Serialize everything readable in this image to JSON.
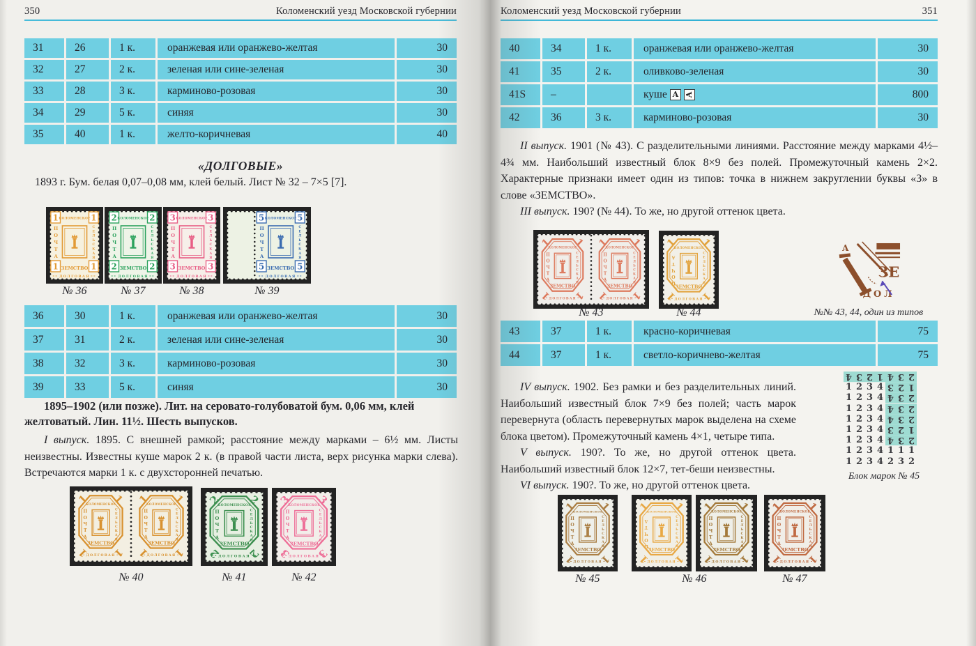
{
  "page_left": {
    "page_number": "350",
    "running_title": "Коломенский уезд Московской губернии",
    "table_top": {
      "rows": [
        [
          "31",
          "26",
          "1 к.",
          "оранжевая или оранжево-желтая",
          "30"
        ],
        [
          "32",
          "27",
          "2 к.",
          "зеленая или сине-зеленая",
          "30"
        ],
        [
          "33",
          "28",
          "3 к.",
          "карминово-розовая",
          "30"
        ],
        [
          "34",
          "29",
          "5 к.",
          "синяя",
          "30"
        ],
        [
          "35",
          "40",
          "1 к.",
          "желто-коричневая",
          "40"
        ]
      ]
    },
    "section_heading": "«ДОЛГОВЫЕ»",
    "para_1893": "1893 г. Бум. белая 0,07–0,08 мм, клей белый. Лист № 32 – 7×5 [7].",
    "stamps_row1": [
      {
        "name": "stamp-36",
        "type": "rect",
        "value": "1",
        "color": "#e29a35",
        "paper": "#f6f1df"
      },
      {
        "name": "stamp-37",
        "type": "rect",
        "value": "2",
        "color": "#2ba25d",
        "paper": "#eef4e8"
      },
      {
        "name": "stamp-38",
        "type": "rect",
        "value": "3",
        "color": "#e85e85",
        "paper": "#f6efe9"
      },
      {
        "name": "stamp-39",
        "type": "rect",
        "value": "5",
        "color": "#3a6cb0",
        "paper": "#edf2e4",
        "selvage": true
      }
    ],
    "captions": {
      "s36": "№ 36",
      "s37": "№ 37",
      "s38": "№ 38",
      "s39": "№ 39",
      "s40": "№ 40",
      "s41": "№ 41",
      "s42": "№ 42"
    },
    "table_mid": {
      "rows": [
        [
          "36",
          "30",
          "1 к.",
          "оранжевая или оранжево-желтая",
          "30"
        ],
        [
          "37",
          "31",
          "2 к.",
          "зеленая или сине-зеленая",
          "30"
        ],
        [
          "38",
          "32",
          "3 к.",
          "карминово-розовая",
          "30"
        ],
        [
          "39",
          "33",
          "5 к.",
          "синяя",
          "30"
        ]
      ]
    },
    "para_bold": "1895–1902 (или позже). Лит. на серовато-голубоватой бум. 0,06 мм, клей желтоватый. Лин. 11½. Шесть выпусков.",
    "para_issue1_lead": "I выпуск.",
    "para_issue1": " 1895. С внешней рамкой; расстояние между марками – 6½ мм. Листы неизвестны. Известны куше марок 2 к. (в правой части листа, верх рисунка марки слева). Встречаются марки 1 к. с двухсторонней печатью.",
    "stamps_row2": [
      {
        "name": "stamp-40",
        "type": "oct",
        "value": "1",
        "color": "#d8912f",
        "paper": "#f3efe2",
        "pair": true
      },
      {
        "name": "stamp-41",
        "type": "oct",
        "value": "2",
        "color": "#3c8f4f",
        "paper": "#e7efe2"
      },
      {
        "name": "stamp-42",
        "type": "oct",
        "value": "3",
        "color": "#ee6f98",
        "paper": "#f2eeea"
      }
    ]
  },
  "page_right": {
    "page_number": "351",
    "running_title": "Коломенский уезд Московской губернии",
    "table_top": {
      "rows": [
        [
          "40",
          "34",
          "1 к.",
          "оранжевая или оранжево-желтая",
          "30"
        ],
        [
          "41",
          "35",
          "2 к.",
          "оливково-зеленая",
          "30"
        ],
        [
          "41S",
          "–",
          "",
          "куше",
          "800"
        ],
        [
          "42",
          "36",
          "3 к.",
          "карминово-розовая",
          "30"
        ]
      ]
    },
    "kusche_label": "куше",
    "para_issue2_lead": "II выпуск.",
    "para_issue2": " 1901 (№ 43). С разделительными линиями. Расстояние между марками 4½–4¾ мм. Наибольший известный блок 8×9 без полей. Промежуточный камень 2×2. Характерные признаки имеет один из типов: точка в нижнем закруглении буквы «З» в слове «ЗЕМСТВО».",
    "para_issue3_lead": "III выпуск.",
    "para_issue3": " 190? (№ 44). То же, но другой оттенок цвета.",
    "stamps_row3": [
      {
        "name": "stamp-43",
        "type": "oct",
        "value": "1",
        "color": "#dd7a5e",
        "paper": "#f0eeea",
        "pair": true
      },
      {
        "name": "stamp-44",
        "type": "oct",
        "value": "1",
        "color": "#e2a33e",
        "paper": "#f2f0e8",
        "invLeft": true
      }
    ],
    "captions": {
      "s43": "№ 43",
      "s44": "№ 44",
      "types": "№№ 43, 44, один из типов",
      "s45": "№ 45",
      "s46": "№ 46",
      "s47": "№ 47",
      "block": "Блок марок № 45"
    },
    "table_mid": {
      "rows": [
        [
          "43",
          "37",
          "1 к.",
          "красно-коричневая",
          "75"
        ],
        [
          "44",
          "37",
          "1 к.",
          "светло-коричнево-желтая",
          "75"
        ]
      ]
    },
    "para_issue4_lead": "IV выпуск.",
    "para_issue4": " 1902. Без рамки и без разделительных линий. Наибольший известный блок 7×9 без полей; часть марок перевернута (область перевернутых марок выделена на схеме блока цветом). Промежуточный камень 4×1, четыре типа.",
    "para_issue5_lead": "V выпуск.",
    "para_issue5": " 190?. То же, но другой оттенок цвета. Наибольший известный блок 12×7, тет-беши неизвестны.",
    "para_issue6_lead": "VI выпуск.",
    "para_issue6": " 190?. То же, но другой оттенок цвета.",
    "block_diagram": {
      "highlight_color": "#9edbd2",
      "rows": [
        [
          {
            "d": "4",
            "inv": true
          },
          {
            "d": "3",
            "inv": true
          },
          {
            "d": "2",
            "inv": true
          },
          {
            "d": "1",
            "inv": true
          },
          {
            "d": "4",
            "inv": true
          },
          {
            "d": "3",
            "inv": true
          },
          {
            "d": "2",
            "inv": true
          }
        ],
        [
          {
            "d": "1"
          },
          {
            "d": "2"
          },
          {
            "d": "3"
          },
          {
            "d": "4"
          },
          {
            "d": "3",
            "inv": true
          },
          {
            "d": "2",
            "inv": true
          },
          {
            "d": "1",
            "inv": true
          }
        ],
        [
          {
            "d": "1"
          },
          {
            "d": "2"
          },
          {
            "d": "3"
          },
          {
            "d": "4"
          },
          {
            "d": "4",
            "inv": true
          },
          {
            "d": "3",
            "inv": true
          },
          {
            "d": "2",
            "inv": true
          }
        ],
        [
          {
            "d": "1"
          },
          {
            "d": "2"
          },
          {
            "d": "3"
          },
          {
            "d": "4"
          },
          {
            "d": "4",
            "inv": true
          },
          {
            "d": "3",
            "inv": true
          },
          {
            "d": "2",
            "inv": true
          }
        ],
        [
          {
            "d": "1"
          },
          {
            "d": "2"
          },
          {
            "d": "3"
          },
          {
            "d": "4"
          },
          {
            "d": "4",
            "inv": true
          },
          {
            "d": "3",
            "inv": true
          },
          {
            "d": "2",
            "inv": true
          }
        ],
        [
          {
            "d": "1"
          },
          {
            "d": "2"
          },
          {
            "d": "3"
          },
          {
            "d": "4"
          },
          {
            "d": "3",
            "inv": true
          },
          {
            "d": "2",
            "inv": true
          },
          {
            "d": "1",
            "inv": true
          }
        ],
        [
          {
            "d": "1"
          },
          {
            "d": "2"
          },
          {
            "d": "3"
          },
          {
            "d": "4"
          },
          {
            "d": "4",
            "inv": true
          },
          {
            "d": "3",
            "inv": true
          },
          {
            "d": "2",
            "inv": true
          }
        ],
        [
          {
            "d": "1"
          },
          {
            "d": "2"
          },
          {
            "d": "3"
          },
          {
            "d": "4"
          },
          {
            "d": "1"
          },
          {
            "d": "1"
          },
          {
            "d": "1"
          }
        ],
        [
          {
            "d": "1"
          },
          {
            "d": "2"
          },
          {
            "d": "3"
          },
          {
            "d": "4"
          },
          {
            "d": "2"
          },
          {
            "d": "3"
          },
          {
            "d": "2"
          }
        ]
      ]
    },
    "stamps_row4": [
      {
        "name": "stamp-45",
        "type": "oct",
        "value": "1",
        "color": "#ab7f45",
        "paper": "#eff0ea"
      },
      {
        "name": "stamp-46a",
        "type": "oct",
        "value": "1",
        "color": "#e8a844",
        "paper": "#f1efe6",
        "invLeft": true
      },
      {
        "name": "stamp-46b",
        "type": "oct",
        "value": "1",
        "color": "#a3793a",
        "paper": "#efefe8"
      },
      {
        "name": "stamp-47",
        "type": "oct",
        "value": "1",
        "color": "#c06a42",
        "paper": "#f1eee8"
      }
    ]
  },
  "colors": {
    "table_fill": "#6fcfe2",
    "header_rule": "#2fb0d4",
    "block_highlight": "#9edbd2",
    "stamp_mount": "#232323",
    "type_detail_brown": "#8c4f2c",
    "arrow_violet": "#5a4ab8"
  }
}
